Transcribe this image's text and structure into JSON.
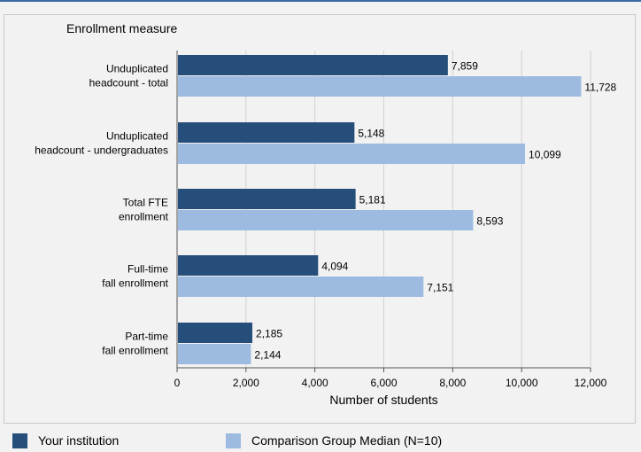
{
  "chart_data": {
    "type": "bar",
    "orientation": "horizontal",
    "title": "Enrollment measure",
    "xlabel": "Number of students",
    "xlim": [
      0,
      12000
    ],
    "xticks": [
      0,
      2000,
      4000,
      6000,
      8000,
      10000,
      12000
    ],
    "xtick_labels": [
      "0",
      "2,000",
      "4,000",
      "6,000",
      "8,000",
      "10,000",
      "12,000"
    ],
    "grid": true,
    "legend_position": "bottom",
    "categories": [
      [
        "Unduplicated",
        "headcount - total"
      ],
      [
        "Unduplicated",
        "headcount - undergraduates"
      ],
      [
        "Total FTE",
        "enrollment"
      ],
      [
        "Full-time",
        "fall enrollment"
      ],
      [
        "Part-time",
        "fall enrollment"
      ]
    ],
    "series": [
      {
        "name": "Your institution",
        "color": "#264e7a",
        "values": [
          7859,
          5148,
          5181,
          4094,
          2185
        ],
        "labels": [
          "7,859",
          "5,148",
          "5,181",
          "4,094",
          "2,185"
        ]
      },
      {
        "name": "Comparison Group Median (N=10)",
        "color": "#9dbbe0",
        "values": [
          11728,
          10099,
          8593,
          7151,
          2144
        ],
        "labels": [
          "11,728",
          "10,099",
          "8,593",
          "7,151",
          "2,144"
        ]
      }
    ]
  }
}
